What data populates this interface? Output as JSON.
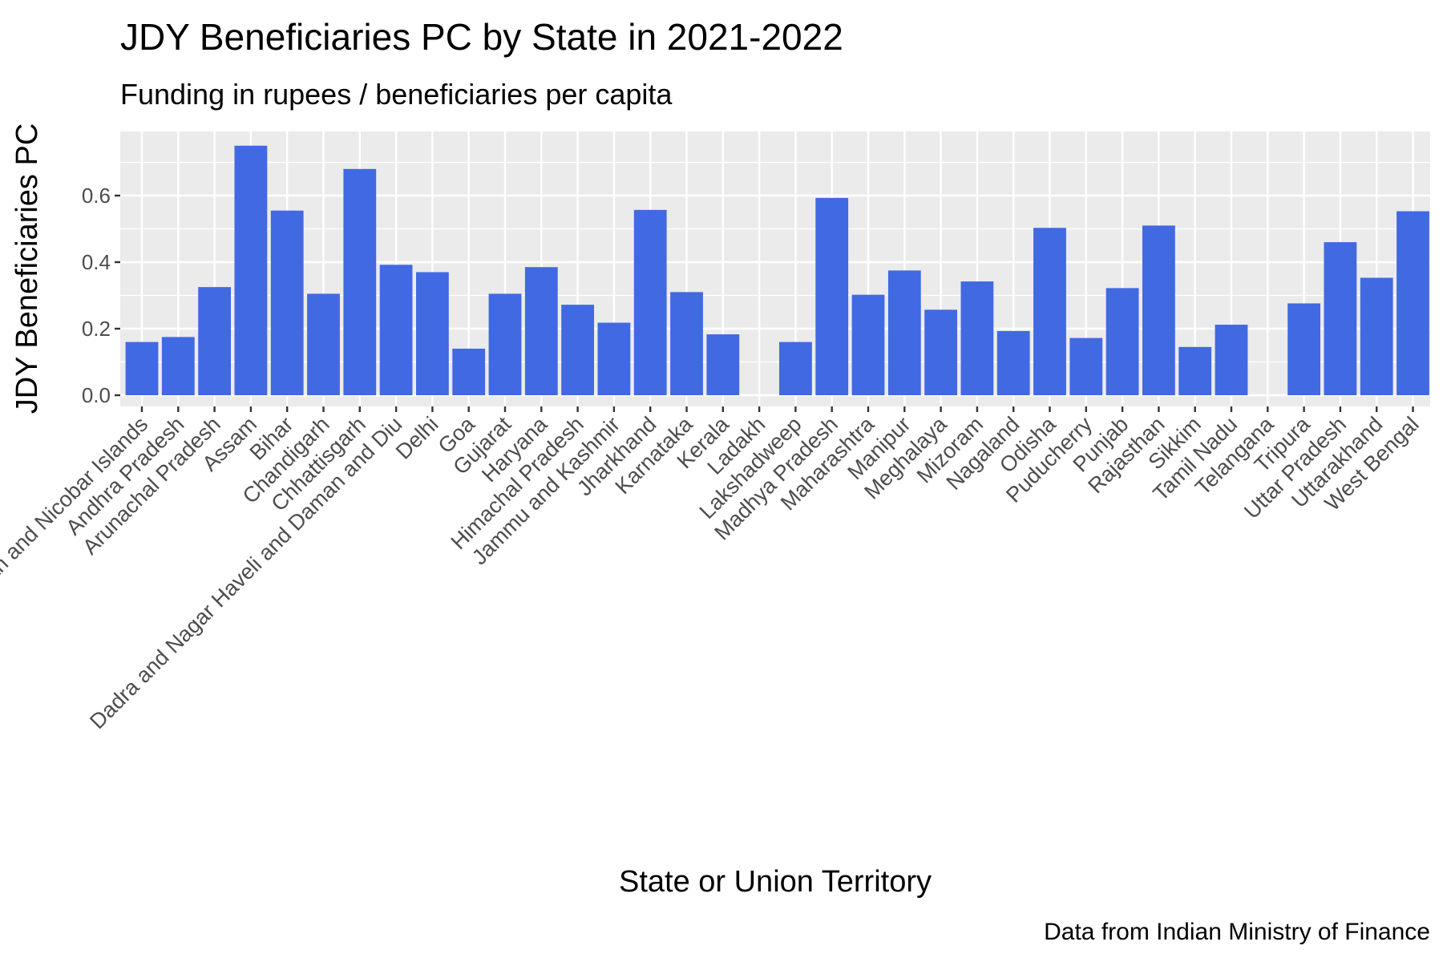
{
  "chart_data": {
    "type": "bar",
    "title": "JDY Beneficiaries PC by State in 2021-2022",
    "subtitle": "Funding in rupees / beneficiaries per capita",
    "xlabel": "State or Union Territory",
    "ylabel": "JDY Beneficiaries PC",
    "caption": "Data from Indian Ministry of Finance",
    "ylim": [
      0,
      0.787
    ],
    "yticks": [
      {
        "value": 0.0,
        "label": "0.0"
      },
      {
        "value": 0.2,
        "label": "0.2"
      },
      {
        "value": 0.4,
        "label": "0.4"
      },
      {
        "value": 0.6,
        "label": "0.6"
      }
    ],
    "grid": true,
    "bar_color": "#4169E1",
    "panel_color": "#EBEBEB",
    "categories": [
      "Andaman and Nicobar Islands",
      "Andhra Pradesh",
      "Arunachal Pradesh",
      "Assam",
      "Bihar",
      "Chandigarh",
      "Chhattisgarh",
      "Dadra and Nagar Haveli and Daman and Diu",
      "Delhi",
      "Goa",
      "Gujarat",
      "Haryana",
      "Himachal Pradesh",
      "Jammu and Kashmir",
      "Jharkhand",
      "Karnataka",
      "Kerala",
      "Ladakh",
      "Lakshadweep",
      "Madhya Pradesh",
      "Maharashtra",
      "Manipur",
      "Meghalaya",
      "Mizoram",
      "Nagaland",
      "Odisha",
      "Puducherry",
      "Punjab",
      "Rajasthan",
      "Sikkim",
      "Tamil Nadu",
      "Telangana",
      "Tripura",
      "Uttar Pradesh",
      "Uttarakhand",
      "West Bengal"
    ],
    "values": [
      0.16,
      0.175,
      0.325,
      0.75,
      0.555,
      0.305,
      0.68,
      0.392,
      0.37,
      0.14,
      0.305,
      0.385,
      0.272,
      0.218,
      0.557,
      0.31,
      0.183,
      null,
      0.16,
      0.593,
      0.302,
      0.375,
      0.257,
      0.342,
      0.193,
      0.503,
      0.172,
      0.322,
      0.51,
      0.145,
      0.212,
      null,
      0.276,
      0.46,
      0.353,
      0.553
    ]
  }
}
